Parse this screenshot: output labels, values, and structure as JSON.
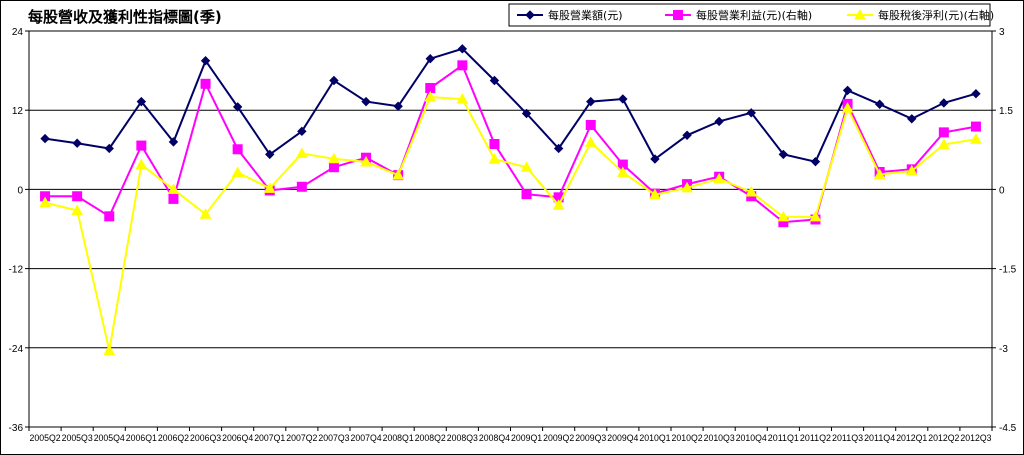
{
  "chart_data": {
    "type": "line",
    "title": "每股營收及獲利性指標圖(季)",
    "categories": [
      "2005Q2",
      "2005Q3",
      "2005Q4",
      "2006Q1",
      "2006Q2",
      "2006Q3",
      "2006Q4",
      "2007Q1",
      "2007Q2",
      "2007Q3",
      "2007Q4",
      "2008Q1",
      "2008Q2",
      "2008Q3",
      "2008Q4",
      "2009Q1",
      "2009Q2",
      "2009Q3",
      "2009Q4",
      "2010Q1",
      "2010Q2",
      "2010Q3",
      "2010Q4",
      "2011Q1",
      "2011Q2",
      "2011Q3",
      "2011Q4",
      "2012Q1",
      "2012Q2",
      "2012Q3"
    ],
    "left_axis": {
      "ylim": [
        -36,
        24
      ],
      "ticks": [
        24,
        12,
        0,
        -12,
        -24,
        -36
      ]
    },
    "right_axis": {
      "ylim": [
        -4.5,
        3
      ],
      "ticks": [
        3,
        1.5,
        0,
        -1.5,
        -3,
        -4.5
      ]
    },
    "grid": true,
    "legend_position": "top-right",
    "series": [
      {
        "name": "每股營業額(元)",
        "axis": "left",
        "color": "#000066",
        "marker": "diamond",
        "values": [
          7.7,
          7.0,
          6.2,
          13.3,
          7.2,
          19.5,
          12.5,
          5.3,
          8.8,
          16.5,
          13.3,
          12.6,
          19.8,
          21.3,
          16.5,
          11.5,
          6.2,
          13.3,
          13.7,
          4.6,
          8.2,
          10.3,
          11.6,
          5.3,
          4.2,
          15.0,
          12.9,
          10.7,
          13.1,
          14.5
        ]
      },
      {
        "name": "每股營業利益(元)(右軸)",
        "axis": "right",
        "color": "#ff00ff",
        "marker": "square",
        "values": [
          -0.13,
          -0.13,
          -0.51,
          0.83,
          -0.18,
          2.0,
          0.76,
          -0.02,
          0.05,
          0.42,
          0.6,
          0.27,
          1.92,
          2.35,
          0.86,
          -0.09,
          -0.15,
          1.22,
          0.47,
          -0.08,
          0.1,
          0.24,
          -0.13,
          -0.62,
          -0.57,
          1.62,
          0.33,
          0.38,
          1.08,
          1.19
        ]
      },
      {
        "name": "每股稅後淨利(元)(右軸)",
        "axis": "right",
        "color": "#ffff00",
        "marker": "triangle",
        "values": [
          -0.25,
          -0.4,
          -3.05,
          0.47,
          0.0,
          -0.47,
          0.32,
          0.02,
          0.68,
          0.58,
          0.52,
          0.27,
          1.75,
          1.71,
          0.57,
          0.42,
          -0.3,
          0.89,
          0.32,
          -0.1,
          0.03,
          0.2,
          -0.05,
          -0.52,
          -0.52,
          1.54,
          0.28,
          0.35,
          0.85,
          0.95
        ]
      }
    ]
  }
}
